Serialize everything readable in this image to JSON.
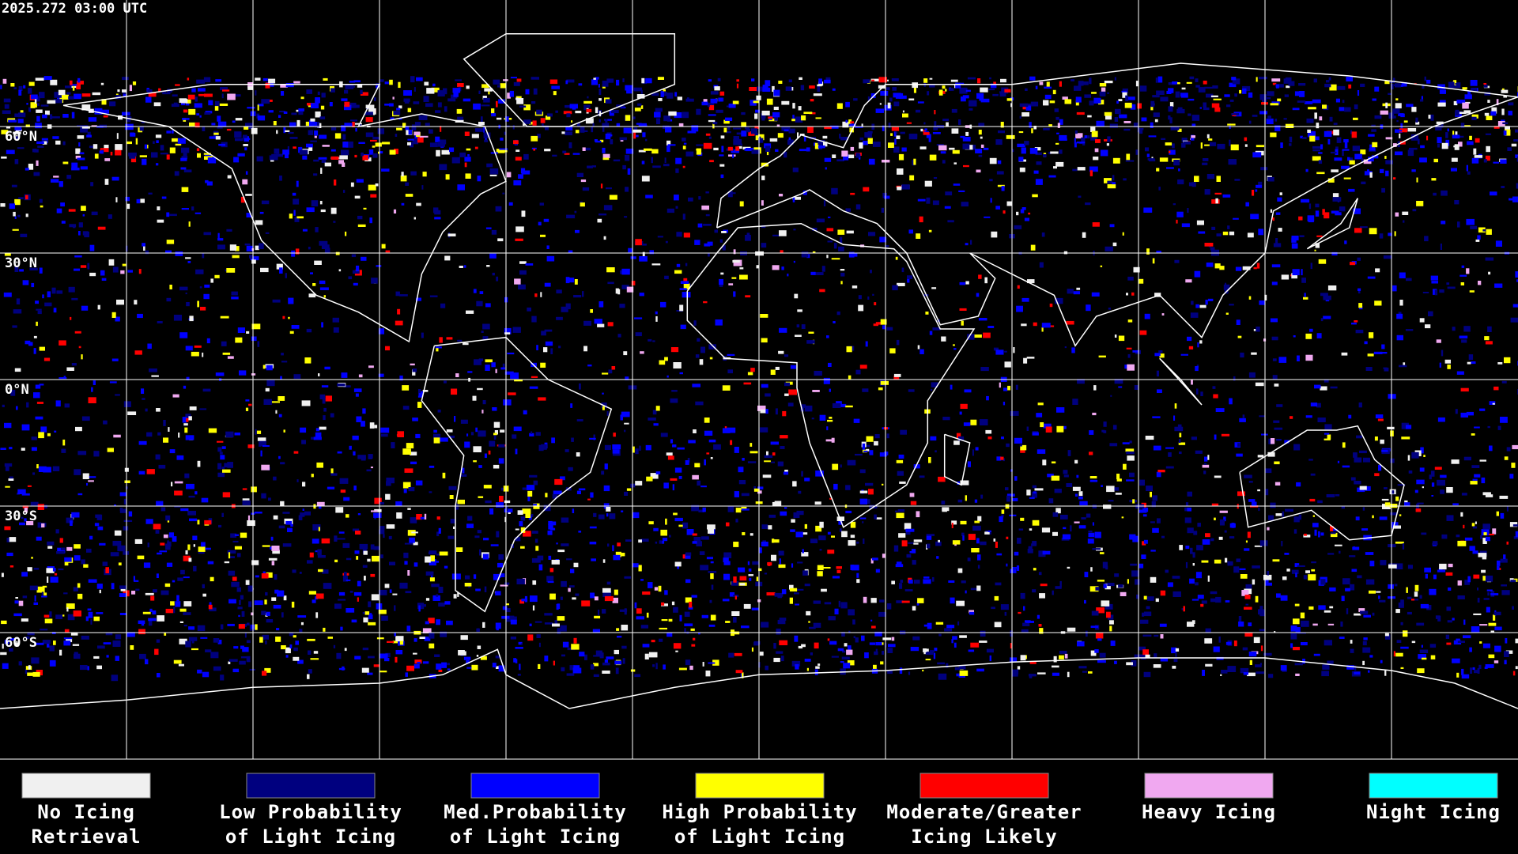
{
  "timestamp": "2025.272 03:00 UTC",
  "lat_labels": [
    "60°N",
    "30°N",
    "0°N",
    "30°S",
    "60°S"
  ],
  "legend": [
    {
      "color": "#f0f0f0",
      "lines": [
        "No Icing",
        "Retrieval"
      ]
    },
    {
      "color": "#00007f",
      "lines": [
        "Low Probability",
        "of Light Icing"
      ]
    },
    {
      "color": "#0000ff",
      "lines": [
        "Med.Probability",
        "of Light Icing"
      ]
    },
    {
      "color": "#ffff00",
      "lines": [
        "High Probability",
        "of Light Icing"
      ]
    },
    {
      "color": "#ff0000",
      "lines": [
        "Moderate/Greater",
        "Icing Likely"
      ]
    },
    {
      "color": "#f0a8f0",
      "lines": [
        "Heavy Icing"
      ]
    },
    {
      "color": "#00ffff",
      "lines": [
        "Night Icing"
      ]
    }
  ]
}
